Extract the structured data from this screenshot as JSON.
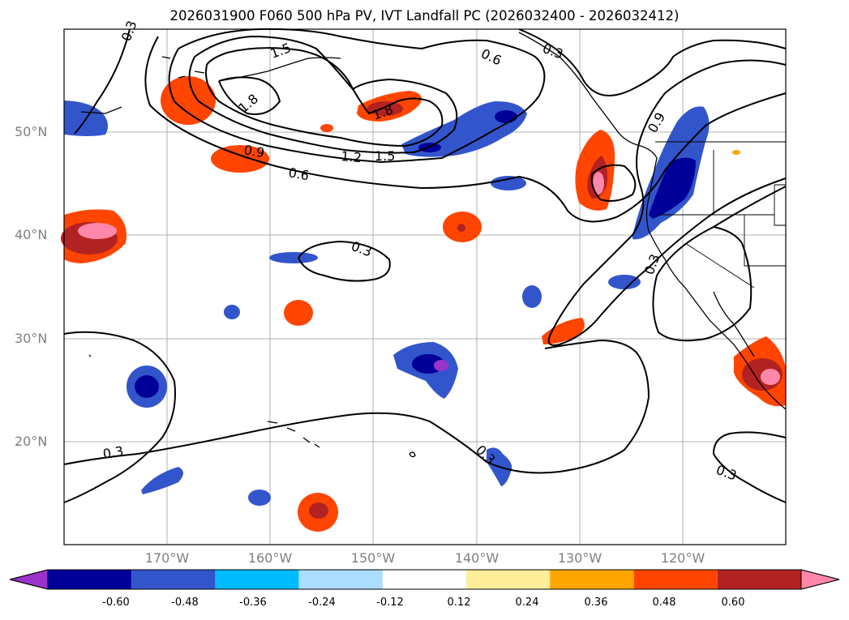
{
  "title": "2026031900 F060 500 hPa PV, IVT Landfall PC (2026032400 - 2026032412)",
  "lat_labels": [
    "50°N",
    "40°N",
    "30°N",
    "20°N"
  ],
  "lon_labels": [
    "170°W",
    "160°W",
    "150°W",
    "140°W",
    "130°W",
    "120°W"
  ],
  "map_extent": {
    "lon_min": -180,
    "lon_max": -110,
    "lat_min": 10,
    "lat_max": 60
  },
  "gridlines": true,
  "contour_labels": [
    "0.3",
    "0.6",
    "0.9",
    "1.2",
    "1.5",
    "1.8"
  ],
  "colorbar": {
    "ticks": [
      "-0.60",
      "-0.48",
      "-0.36",
      "-0.24",
      "-0.12",
      "0.12",
      "0.24",
      "0.36",
      "0.48",
      "0.60"
    ],
    "colors": [
      "#9933cc",
      "#000099",
      "#3355cc",
      "#00bbff",
      "#aaddff",
      "#ffffff",
      "#ffee99",
      "#ffa500",
      "#ff4500",
      "#b22222",
      "#ff88aa"
    ],
    "extend": "both"
  }
}
